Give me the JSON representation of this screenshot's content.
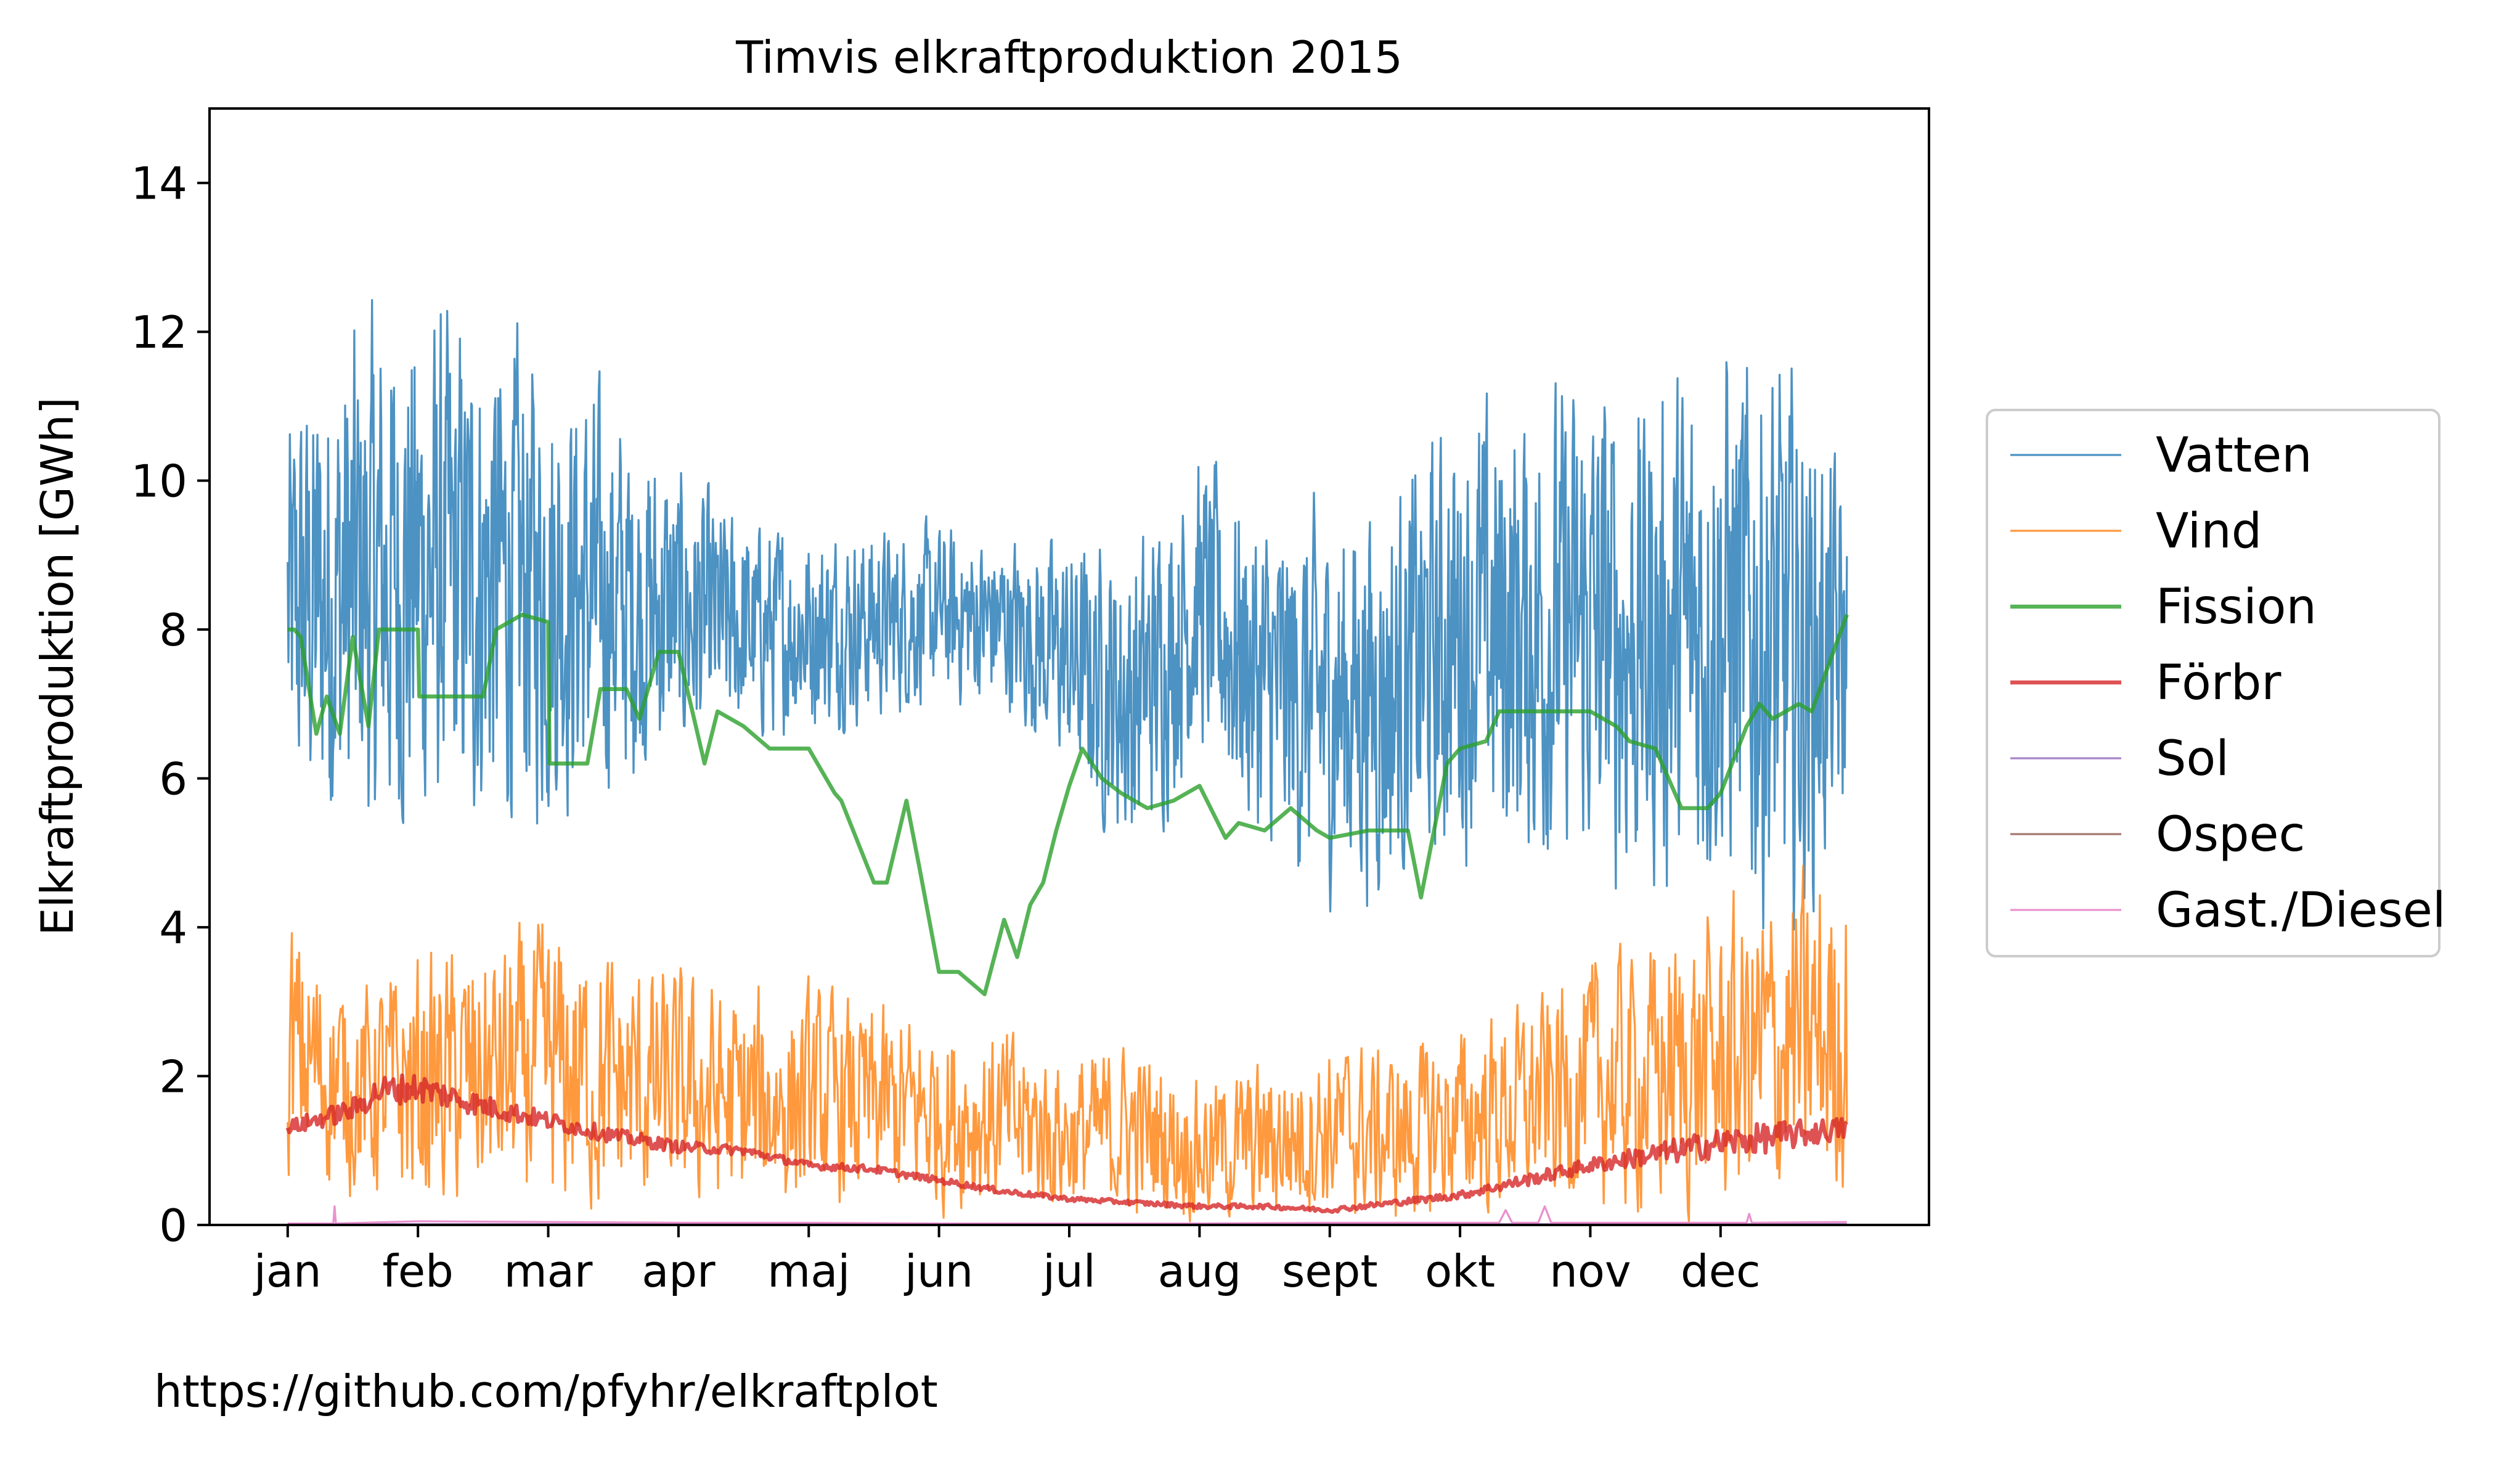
{
  "chart_data": {
    "type": "line",
    "title": "Timvis elkraftproduktion 2015",
    "xlabel": "",
    "ylabel": "Elkraftproduktion [GWh]",
    "xlim": [
      -0.6,
      12.6
    ],
    "ylim": [
      0,
      15
    ],
    "yticks": [
      0,
      2,
      4,
      6,
      8,
      10,
      12,
      14
    ],
    "categories": [
      "jan",
      "feb",
      "mar",
      "apr",
      "maj",
      "jun",
      "jul",
      "aug",
      "sept",
      "okt",
      "nov",
      "dec"
    ],
    "grid": false,
    "legend_position": "right",
    "colors": {
      "Vatten": "#1f77b4",
      "Vind": "#ff7f0e",
      "Fission": "#2ca02c",
      "Förbr": "#d62728",
      "Sol": "#9467bd",
      "Ospec": "#8c564b",
      "Gast./Diesel": "#e377c2"
    },
    "series": [
      {
        "name": "Vatten",
        "x": [
          0.0,
          0.5,
          1.0,
          1.5,
          2.0,
          2.5,
          3.0,
          3.5,
          4.0,
          4.5,
          5.0,
          5.5,
          6.0,
          6.5,
          7.0,
          7.5,
          8.0,
          8.5,
          9.0,
          9.5,
          10.0,
          10.5,
          11.0,
          11.5,
          11.97
        ],
        "y": [
          8.2,
          8.6,
          8.8,
          8.7,
          8.6,
          8.4,
          8.2,
          8.0,
          8.0,
          8.1,
          8.2,
          8.1,
          7.6,
          7.0,
          8.4,
          7.2,
          7.0,
          7.2,
          8.0,
          8.0,
          8.0,
          7.8,
          8.2,
          7.6,
          7.6
        ],
        "amplitude": [
          2.8,
          3.6,
          3.6,
          3.4,
          3.2,
          2.6,
          2.0,
          1.5,
          1.4,
          1.3,
          1.2,
          1.2,
          1.6,
          2.2,
          2.0,
          2.4,
          2.6,
          2.8,
          3.0,
          3.2,
          3.4,
          3.4,
          3.8,
          4.0,
          2.4
        ],
        "max": 13.0,
        "min": 2.1,
        "width": 3.3
      },
      {
        "name": "Vind",
        "x": [
          0.0,
          0.5,
          1.0,
          1.5,
          2.0,
          2.5,
          3.0,
          3.5,
          4.0,
          4.5,
          5.0,
          5.5,
          6.0,
          6.5,
          7.0,
          7.5,
          8.0,
          8.5,
          9.0,
          9.5,
          10.0,
          10.5,
          11.0,
          11.5,
          11.97
        ],
        "y": [
          2.4,
          1.8,
          1.9,
          2.0,
          2.1,
          1.9,
          1.8,
          1.6,
          1.7,
          1.6,
          1.5,
          1.4,
          1.2,
          1.3,
          1.0,
          1.1,
          1.3,
          1.2,
          1.4,
          1.6,
          1.9,
          2.0,
          2.2,
          2.4,
          2.6
        ],
        "amplitude": [
          1.8,
          1.4,
          1.8,
          1.8,
          2.0,
          1.8,
          1.6,
          1.6,
          1.5,
          1.4,
          1.3,
          1.3,
          1.1,
          1.2,
          1.0,
          1.1,
          1.2,
          1.2,
          1.3,
          1.4,
          1.7,
          1.9,
          2.1,
          2.3,
          2.3
        ],
        "max": 4.9,
        "min": 0.05,
        "width": 3.3
      },
      {
        "name": "Fission",
        "x": [
          0.0,
          0.05,
          0.1,
          0.22,
          0.3,
          0.4,
          0.5,
          0.62,
          0.7,
          1.0,
          1.01,
          1.5,
          1.6,
          1.8,
          2.0,
          2.01,
          2.3,
          2.4,
          2.6,
          2.7,
          2.85,
          3.0,
          3.2,
          3.3,
          3.4,
          3.5,
          3.7,
          4.0,
          4.2,
          4.25,
          4.5,
          4.6,
          4.75,
          4.85,
          5.0,
          5.15,
          5.35,
          5.5,
          5.6,
          5.7,
          5.8,
          5.9,
          6.0,
          6.1,
          6.25,
          6.4,
          6.6,
          6.8,
          7.0,
          7.2,
          7.3,
          7.5,
          7.7,
          7.9,
          8.0,
          8.3,
          8.5,
          8.6,
          8.7,
          8.9,
          9.0,
          9.2,
          9.3,
          9.6,
          9.8,
          10.0,
          10.2,
          10.3,
          10.5,
          10.7,
          10.9,
          11.0,
          11.2,
          11.3,
          11.4,
          11.6,
          11.7,
          11.97
        ],
        "y": [
          8.0,
          8.0,
          7.9,
          6.6,
          7.1,
          6.6,
          7.9,
          6.7,
          8.0,
          8.0,
          7.1,
          7.1,
          8.0,
          8.2,
          8.1,
          6.2,
          6.2,
          7.2,
          7.2,
          6.8,
          7.7,
          7.7,
          6.2,
          6.9,
          6.8,
          6.7,
          6.4,
          6.4,
          5.8,
          5.7,
          4.6,
          4.6,
          5.7,
          4.8,
          3.4,
          3.4,
          3.1,
          4.1,
          3.6,
          4.3,
          4.6,
          5.3,
          5.9,
          6.4,
          6.0,
          5.8,
          5.6,
          5.7,
          5.9,
          5.2,
          5.4,
          5.3,
          5.6,
          5.3,
          5.2,
          5.3,
          5.3,
          5.3,
          4.4,
          6.2,
          6.4,
          6.5,
          6.9,
          6.9,
          6.9,
          6.9,
          6.7,
          6.5,
          6.4,
          5.6,
          5.6,
          5.8,
          6.7,
          7.0,
          6.8,
          7.0,
          6.9,
          8.2
        ],
        "width": 6.5
      },
      {
        "name": "Förbr",
        "x": [
          0.0,
          0.5,
          0.7,
          1.0,
          1.5,
          2.0,
          2.5,
          3.0,
          3.5,
          4.0,
          4.5,
          5.0,
          5.5,
          6.0,
          6.5,
          7.0,
          7.5,
          8.0,
          8.5,
          9.0,
          9.5,
          10.0,
          10.5,
          11.0,
          11.5,
          11.97
        ],
        "y": [
          1.3,
          1.55,
          1.8,
          1.85,
          1.6,
          1.4,
          1.2,
          1.05,
          1.0,
          0.8,
          0.75,
          0.6,
          0.45,
          0.35,
          0.3,
          0.25,
          0.25,
          0.2,
          0.3,
          0.4,
          0.6,
          0.8,
          0.95,
          1.1,
          1.2,
          1.3
        ],
        "amplitude": [
          0.1,
          0.15,
          0.2,
          0.2,
          0.15,
          0.12,
          0.1,
          0.08,
          0.06,
          0.05,
          0.05,
          0.04,
          0.04,
          0.03,
          0.03,
          0.03,
          0.03,
          0.03,
          0.04,
          0.05,
          0.08,
          0.1,
          0.15,
          0.2,
          0.2,
          0.15
        ],
        "width": 6.5
      },
      {
        "name": "Sol",
        "x": [
          0.0,
          11.97
        ],
        "y": [
          0.01,
          0.01
        ],
        "width": 3.3
      },
      {
        "name": "Ospec",
        "x": [
          0.0,
          11.97
        ],
        "y": [
          0.0,
          0.0
        ],
        "width": 3.3
      },
      {
        "name": "Gast./Diesel",
        "x": [
          0.0,
          0.35,
          0.36,
          0.37,
          1.0,
          2.0,
          3.0,
          4.0,
          5.0,
          6.0,
          7.0,
          8.0,
          9.3,
          9.35,
          9.4,
          9.6,
          9.65,
          9.7,
          11.2,
          11.22,
          11.24,
          11.97
        ],
        "y": [
          0.02,
          0.02,
          0.25,
          0.02,
          0.05,
          0.04,
          0.03,
          0.03,
          0.02,
          0.02,
          0.02,
          0.03,
          0.03,
          0.2,
          0.03,
          0.03,
          0.25,
          0.03,
          0.03,
          0.15,
          0.03,
          0.04
        ],
        "width": 3.3
      }
    ],
    "annotations": [
      "https://github.com/pfyhr/elkraftplot"
    ]
  }
}
